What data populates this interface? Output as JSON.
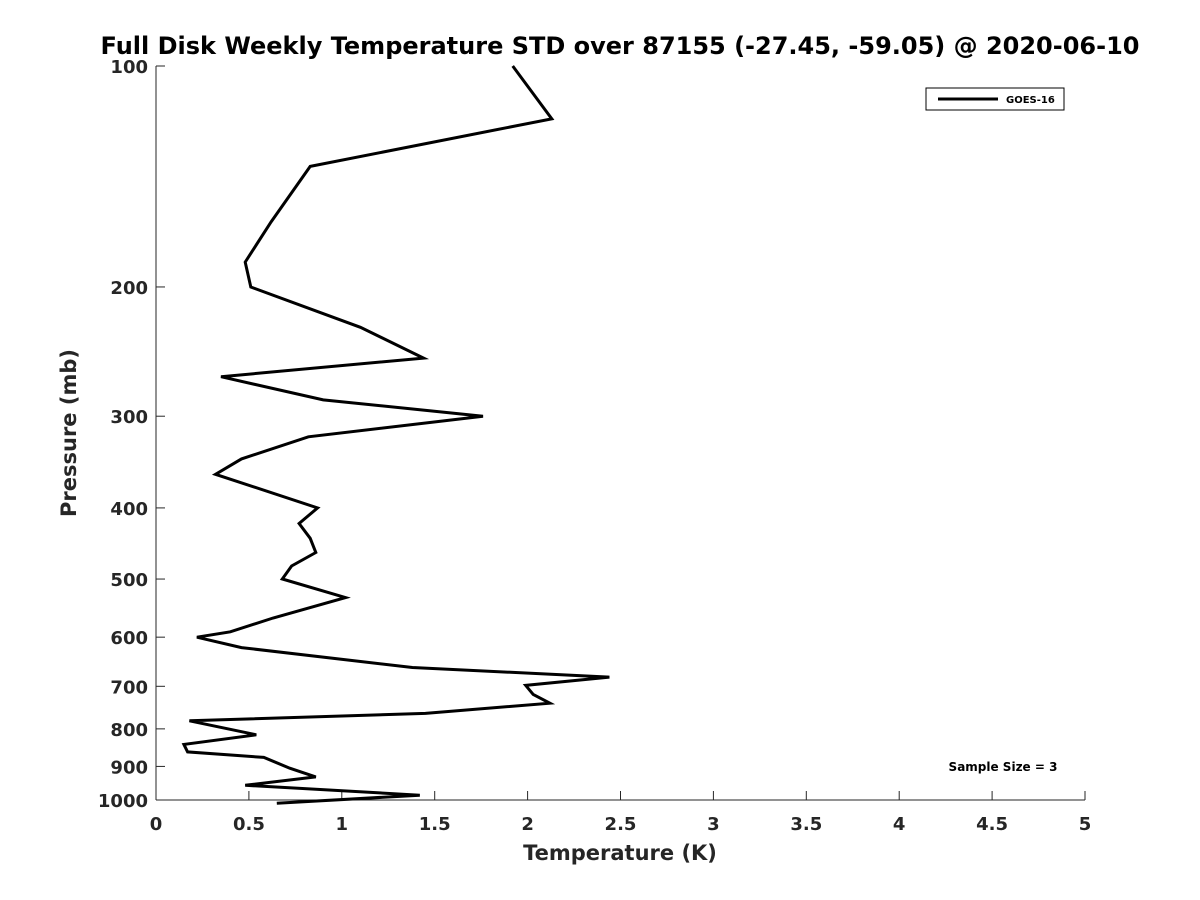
{
  "chart_data": {
    "type": "line",
    "title": "Full Disk Weekly Temperature STD over 87155 (-27.45, -59.05) @ 2020-06-10",
    "xlabel": "Temperature (K)",
    "ylabel": "Pressure (mb)",
    "xlim": [
      0,
      5
    ],
    "ylim": [
      1000,
      100
    ],
    "yscale": "log",
    "xticks": [
      0,
      0.5,
      1,
      1.5,
      2,
      2.5,
      3,
      3.5,
      4,
      4.5,
      5
    ],
    "xtick_labels": [
      "0",
      "0.5",
      "1",
      "1.5",
      "2",
      "2.5",
      "3",
      "3.5",
      "4",
      "4.5",
      "5"
    ],
    "yticks": [
      100,
      200,
      300,
      400,
      500,
      600,
      700,
      800,
      900,
      1000
    ],
    "ytick_labels": [
      "100",
      "200",
      "300",
      "400",
      "500",
      "600",
      "700",
      "800",
      "900",
      "1000"
    ],
    "grid": false,
    "legend_position": "top-right",
    "annotation": "Sample Size = 3",
    "series": [
      {
        "name": "GOES-16",
        "color": "#000000",
        "x": [
          1.92,
          2.13,
          0.83,
          0.62,
          0.48,
          0.51,
          1.1,
          1.44,
          0.35,
          0.9,
          1.76,
          0.82,
          0.46,
          0.32,
          0.87,
          0.77,
          0.83,
          0.86,
          0.73,
          0.68,
          1.02,
          0.63,
          0.4,
          0.22,
          0.46,
          1.38,
          2.44,
          1.99,
          2.03,
          2.12,
          1.45,
          0.18,
          0.54,
          0.15,
          0.17,
          0.58,
          0.72,
          0.86,
          0.48,
          1.42,
          0.65
        ],
        "y": [
          100,
          118,
          137,
          163,
          185,
          200,
          227,
          250,
          265,
          285,
          300,
          320,
          343,
          360,
          400,
          420,
          440,
          460,
          480,
          500,
          530,
          565,
          590,
          600,
          620,
          660,
          680,
          698,
          718,
          738,
          762,
          780,
          815,
          840,
          860,
          875,
          905,
          930,
          955,
          985,
          1010
        ]
      }
    ]
  }
}
